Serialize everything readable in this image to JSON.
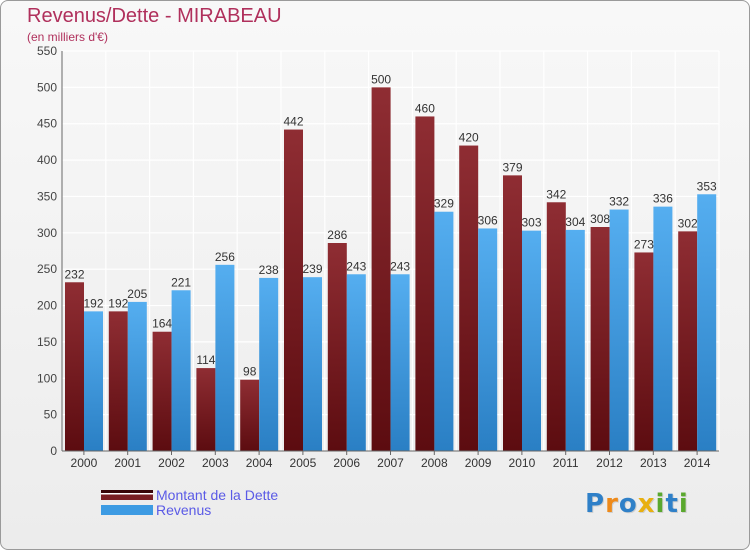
{
  "header": {
    "title": "Revenus/Dette - MIRABEAU",
    "subtitle": "(en milliers d'€)"
  },
  "chart_data": {
    "type": "bar",
    "title": "Revenus/Dette - MIRABEAU",
    "subtitle": "(en milliers d'€)",
    "xlabel": "",
    "ylabel": "",
    "ylim": [
      0,
      550
    ],
    "yticks": [
      0,
      50,
      100,
      150,
      200,
      250,
      300,
      350,
      400,
      450,
      500,
      550
    ],
    "grid": true,
    "legend_position": "bottom-left",
    "categories": [
      "2000",
      "2001",
      "2002",
      "2003",
      "2004",
      "2005",
      "2006",
      "2007",
      "2008",
      "2009",
      "2010",
      "2011",
      "2012",
      "2013",
      "2014"
    ],
    "series": [
      {
        "name": "Montant de la Dette",
        "color": "#7a1e22",
        "values": [
          232,
          192,
          164,
          114,
          98,
          442,
          286,
          500,
          460,
          420,
          379,
          342,
          308,
          273,
          302
        ]
      },
      {
        "name": "Revenus",
        "color": "#3d9be3",
        "values": [
          192,
          205,
          221,
          256,
          238,
          239,
          243,
          243,
          329,
          306,
          303,
          304,
          332,
          336,
          353
        ]
      }
    ]
  },
  "logo": {
    "letters": [
      "P",
      "r",
      "o",
      "x",
      "i",
      "t",
      "i"
    ],
    "colors": [
      "#2f80c8",
      "#ee8a1a",
      "#2f80c8",
      "#e8b010",
      "#5aa82e",
      "#2f80c8",
      "#5aa82e"
    ]
  }
}
